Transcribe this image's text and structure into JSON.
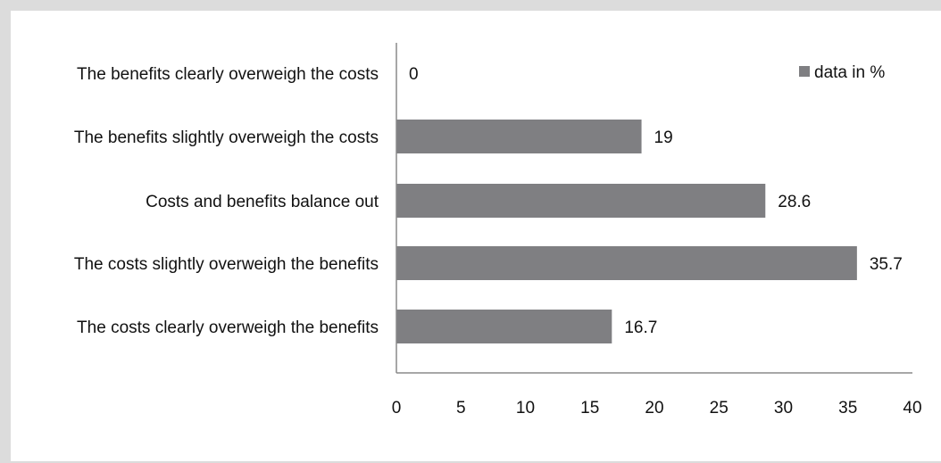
{
  "chart_data": {
    "type": "bar",
    "orientation": "horizontal",
    "categories": [
      "The benefits clearly overweigh the costs",
      "The benefits slightly overweigh the costs",
      "Costs and benefits balance out",
      "The costs slightly overweigh the benefits",
      "The costs clearly overweigh the benefits"
    ],
    "series": [
      {
        "name": "data in %",
        "values": [
          0,
          19,
          28.6,
          35.7,
          16.7
        ],
        "color": "#7f7f82"
      }
    ],
    "data_labels": [
      "0",
      "19",
      "28.6",
      "35.7",
      "16.7"
    ],
    "xlim": [
      0,
      40
    ],
    "xticks": [
      0,
      5,
      10,
      15,
      20,
      25,
      30,
      35,
      40
    ],
    "grid": false,
    "legend": {
      "position": "top-right",
      "label": "data in %"
    }
  }
}
